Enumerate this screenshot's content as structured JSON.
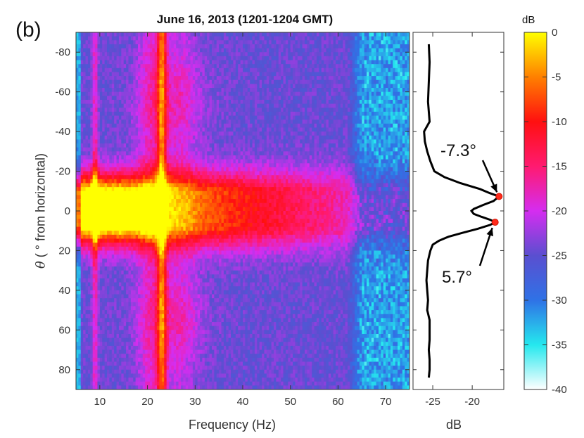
{
  "panel_label": "(b)",
  "title": "June 16, 2013 (1201-1204 GMT)",
  "colorbar": {
    "unit": "dB",
    "ticks": [
      "0",
      "-5",
      "-10",
      "-15",
      "-20",
      "-25",
      "-30",
      "-35",
      "-40"
    ],
    "range": [
      -40,
      0
    ],
    "colormap": [
      "#ffffff",
      "#25e8ee",
      "#2f72e6",
      "#5a4fd0",
      "#d52df0",
      "#ff1a70",
      "#ff1010",
      "#ff8000",
      "#ffff00"
    ]
  },
  "chart_data": [
    {
      "type": "heatmap",
      "xlabel": "Frequency (Hz)",
      "ylabel_symbol": "θ",
      "ylabel_text": "( ° from horizontal)",
      "xlim": [
        5,
        75
      ],
      "ylim": [
        -90,
        90
      ],
      "y_reversed": true,
      "xticks": [
        10,
        20,
        30,
        40,
        50,
        60,
        70
      ],
      "yticks": [
        -80,
        -60,
        -40,
        -20,
        0,
        20,
        40,
        60,
        80
      ],
      "ytick_labels": [
        "-80",
        "-60",
        "-40",
        "-20",
        "0",
        "20",
        "40",
        "60",
        "80"
      ],
      "value_unit": "dB",
      "features": {
        "peak_angles": [
          -7.3,
          5.7
        ],
        "bright_frequencies": [
          9,
          15,
          20,
          23
        ],
        "noise_onset_hz": 62
      }
    },
    {
      "type": "line",
      "xlabel": "dB",
      "xlim": [
        -27.5,
        -16
      ],
      "ylim": [
        -90,
        90
      ],
      "xticks": [
        -25,
        -20
      ],
      "xtick_labels": [
        "-25",
        "-20"
      ],
      "series": [
        {
          "points": [
            [
              -84,
              -25.5
            ],
            [
              -75,
              -25.4
            ],
            [
              -65,
              -25.5
            ],
            [
              -55,
              -25.6
            ],
            [
              -45,
              -25.4
            ],
            [
              -40,
              -26.1
            ],
            [
              -35,
              -26.0
            ],
            [
              -30,
              -25.7
            ],
            [
              -25,
              -25.3
            ],
            [
              -20,
              -24.8
            ],
            [
              -17,
              -23.5
            ],
            [
              -14,
              -21.5
            ],
            [
              -11,
              -19.0
            ],
            [
              -9,
              -17.8
            ],
            [
              -7.3,
              -16.6
            ],
            [
              -5,
              -17.3
            ],
            [
              -3,
              -18.6
            ],
            [
              -1,
              -19.8
            ],
            [
              0,
              -20.1
            ],
            [
              1.5,
              -19.8
            ],
            [
              3,
              -18.8
            ],
            [
              4.5,
              -17.7
            ],
            [
              5.7,
              -17.1
            ],
            [
              7,
              -17.7
            ],
            [
              9,
              -19.3
            ],
            [
              11,
              -21.2
            ],
            [
              13,
              -23.0
            ],
            [
              15,
              -24.2
            ],
            [
              17,
              -25.0
            ],
            [
              20,
              -25.3
            ],
            [
              25,
              -25.6
            ],
            [
              30,
              -25.7
            ],
            [
              35,
              -25.8
            ],
            [
              40,
              -25.7
            ],
            [
              45,
              -25.6
            ],
            [
              50,
              -25.7
            ],
            [
              55,
              -25.4
            ],
            [
              60,
              -25.4
            ],
            [
              65,
              -25.4
            ],
            [
              70,
              -25.5
            ],
            [
              75,
              -25.4
            ],
            [
              80,
              -25.4
            ],
            [
              84,
              -25.5
            ]
          ]
        }
      ],
      "markers": [
        {
          "y": -7.3,
          "x": -16.6,
          "label": "-7.3°"
        },
        {
          "y": 5.7,
          "x": -17.1,
          "label": "5.7°"
        }
      ]
    }
  ]
}
